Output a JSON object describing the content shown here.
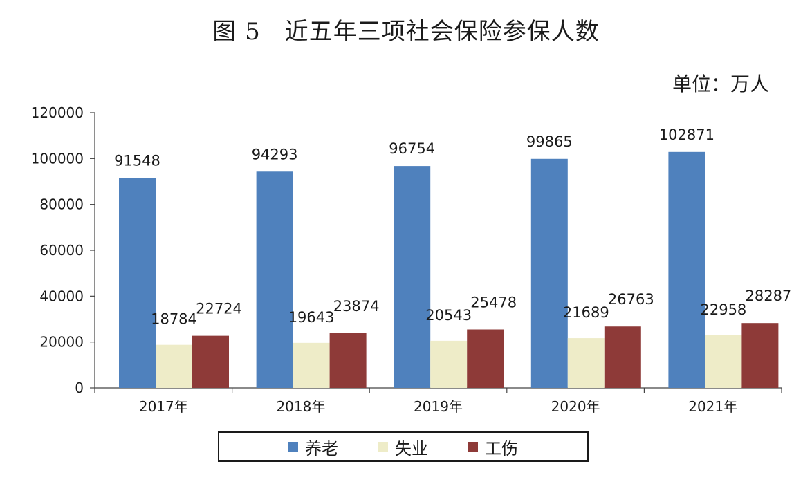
{
  "chart_data": {
    "type": "bar",
    "title": "图 5　近五年三项社会保险参保人数",
    "unit": "单位：万人",
    "categories": [
      "2017年",
      "2018年",
      "2019年",
      "2020年",
      "2021年"
    ],
    "series": [
      {
        "name": "养老",
        "color": "#4F81BD",
        "values": [
          91548,
          94293,
          96754,
          99865,
          102871
        ]
      },
      {
        "name": "失业",
        "color": "#EEECC8",
        "values": [
          18784,
          19643,
          20543,
          21689,
          22958
        ]
      },
      {
        "name": "工伤",
        "color": "#8E3A38",
        "values": [
          22724,
          23874,
          25478,
          26763,
          28287
        ]
      }
    ],
    "ylim": [
      0,
      120000
    ],
    "yticks": [
      0,
      20000,
      40000,
      60000,
      80000,
      100000,
      120000
    ],
    "grid": false,
    "legend": "bottom"
  }
}
